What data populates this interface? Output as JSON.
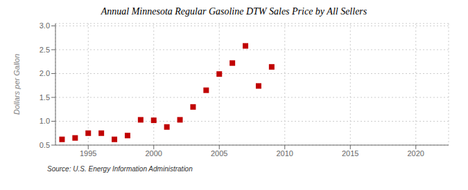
{
  "chart_data": {
    "type": "scatter",
    "title": "Annual Minnesota Regular Gasoline DTW Sales Price by All Sellers",
    "ylabel": "Dollars per Gallon",
    "source": "Source: U.S. Energy Information Administration",
    "x": [
      1993,
      1994,
      1995,
      1996,
      1997,
      1998,
      1999,
      2000,
      2001,
      2002,
      2003,
      2004,
      2005,
      2006,
      2007,
      2008,
      2009,
      2010
    ],
    "values": [
      0.62,
      0.65,
      0.75,
      0.75,
      0.62,
      0.7,
      1.03,
      1.02,
      0.88,
      1.03,
      1.3,
      1.65,
      1.99,
      2.22,
      2.58,
      1.74,
      2.14,
      null
    ],
    "color": "#c00000",
    "marker": "square",
    "xlim": [
      1992.5,
      2022.5
    ],
    "ylim": [
      0.5,
      3.05
    ],
    "xticks": [
      1995,
      2000,
      2005,
      2010,
      2015,
      2020
    ],
    "yticks": [
      0.5,
      {
        "value": 1,
        "label": "1.0"
      },
      1.5,
      {
        "value": 2,
        "label": "2.0"
      },
      2.5,
      {
        "value": 3,
        "label": "3.0"
      }
    ],
    "grid": true
  }
}
